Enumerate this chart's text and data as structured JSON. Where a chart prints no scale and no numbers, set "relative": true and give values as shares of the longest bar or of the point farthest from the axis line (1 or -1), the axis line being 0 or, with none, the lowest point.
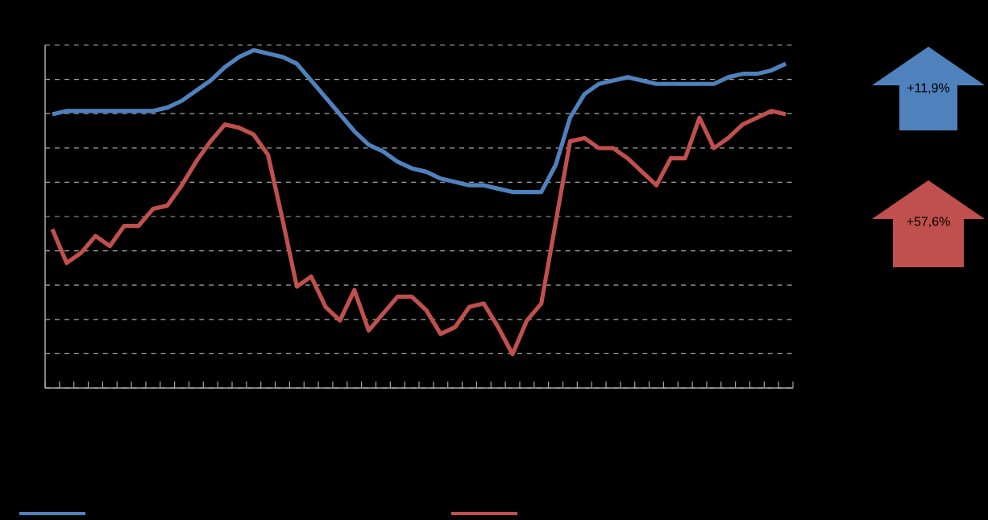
{
  "chart_data": {
    "type": "line",
    "relative": true,
    "grid": "y",
    "categories": [
      null,
      null,
      null,
      null,
      null,
      null,
      null,
      null,
      null,
      null,
      null,
      null,
      null,
      null,
      null,
      null,
      null,
      null,
      null,
      null,
      null,
      null,
      null,
      null,
      null,
      null,
      null,
      null,
      null,
      null,
      null,
      null,
      null,
      null,
      null,
      null,
      null,
      null,
      null,
      null,
      null,
      null,
      null,
      null,
      null,
      null,
      null,
      null,
      null,
      null,
      null,
      null
    ],
    "series": [
      {
        "color": "#4f81bd",
        "values": [
          0.81,
          0.82,
          0.82,
          0.82,
          0.82,
          0.82,
          0.82,
          0.82,
          0.83,
          0.85,
          0.88,
          0.91,
          0.95,
          0.98,
          1.0,
          0.99,
          0.98,
          0.96,
          0.91,
          0.86,
          0.81,
          0.76,
          0.72,
          0.7,
          0.67,
          0.65,
          0.64,
          0.62,
          0.61,
          0.6,
          0.6,
          0.59,
          0.58,
          0.58,
          0.58,
          0.66,
          0.8,
          0.87,
          0.9,
          0.91,
          0.92,
          0.91,
          0.9,
          0.9,
          0.9,
          0.9,
          0.9,
          0.92,
          0.93,
          0.93,
          0.94,
          0.96
        ]
      },
      {
        "color": "#c0504d",
        "values": [
          0.47,
          0.37,
          0.4,
          0.45,
          0.42,
          0.48,
          0.48,
          0.53,
          0.54,
          0.6,
          0.67,
          0.73,
          0.78,
          0.77,
          0.75,
          0.69,
          0.5,
          0.3,
          0.33,
          0.24,
          0.2,
          0.29,
          0.17,
          0.22,
          0.27,
          0.27,
          0.23,
          0.16,
          0.18,
          0.24,
          0.25,
          0.18,
          0.1,
          0.2,
          0.25,
          0.49,
          0.73,
          0.74,
          0.71,
          0.71,
          0.68,
          0.64,
          0.6,
          0.68,
          0.68,
          0.8,
          0.71,
          0.74,
          0.78,
          0.8,
          0.82,
          0.81
        ]
      }
    ],
    "annotations": [
      "+11,9%",
      "+57,6%"
    ]
  }
}
